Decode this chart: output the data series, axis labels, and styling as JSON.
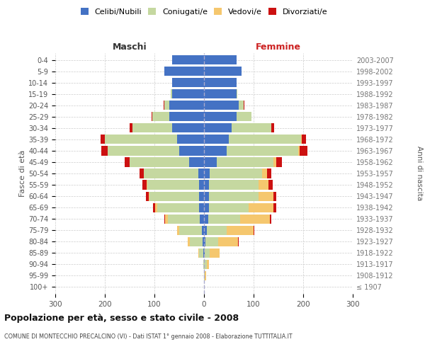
{
  "age_groups": [
    "100+",
    "95-99",
    "90-94",
    "85-89",
    "80-84",
    "75-79",
    "70-74",
    "65-69",
    "60-64",
    "55-59",
    "50-54",
    "45-49",
    "40-44",
    "35-39",
    "30-34",
    "25-29",
    "20-24",
    "15-19",
    "10-14",
    "5-9",
    "0-4"
  ],
  "birth_years": [
    "≤ 1907",
    "1908-1912",
    "1913-1917",
    "1918-1922",
    "1923-1927",
    "1928-1932",
    "1933-1937",
    "1938-1942",
    "1943-1947",
    "1948-1952",
    "1953-1957",
    "1958-1962",
    "1963-1967",
    "1968-1972",
    "1973-1977",
    "1978-1982",
    "1983-1987",
    "1988-1992",
    "1993-1997",
    "1998-2002",
    "2003-2007"
  ],
  "male": {
    "celibe": [
      0,
      0,
      0,
      2,
      3,
      5,
      8,
      10,
      10,
      10,
      12,
      30,
      50,
      55,
      65,
      70,
      70,
      65,
      65,
      80,
      65
    ],
    "coniugato": [
      0,
      0,
      2,
      8,
      25,
      45,
      65,
      85,
      100,
      105,
      110,
      120,
      145,
      145,
      80,
      35,
      10,
      2,
      0,
      0,
      0
    ],
    "vedovo": [
      0,
      0,
      0,
      2,
      5,
      5,
      5,
      3,
      2,
      1,
      0,
      0,
      0,
      0,
      0,
      0,
      0,
      0,
      0,
      0,
      0
    ],
    "divorziato": [
      0,
      0,
      0,
      0,
      0,
      0,
      2,
      5,
      5,
      8,
      8,
      10,
      12,
      8,
      5,
      1,
      1,
      0,
      0,
      0,
      0
    ]
  },
  "female": {
    "nubile": [
      0,
      0,
      0,
      2,
      3,
      5,
      8,
      10,
      10,
      10,
      12,
      25,
      45,
      50,
      55,
      65,
      70,
      65,
      65,
      75,
      65
    ],
    "coniugata": [
      0,
      2,
      5,
      10,
      25,
      40,
      65,
      80,
      100,
      100,
      105,
      115,
      145,
      145,
      80,
      30,
      10,
      2,
      0,
      0,
      0
    ],
    "vedova": [
      0,
      2,
      5,
      20,
      40,
      55,
      60,
      50,
      30,
      20,
      10,
      5,
      3,
      2,
      1,
      0,
      0,
      0,
      0,
      0,
      0
    ],
    "divorziata": [
      0,
      0,
      0,
      0,
      2,
      2,
      3,
      5,
      5,
      8,
      8,
      12,
      15,
      8,
      5,
      1,
      1,
      0,
      0,
      0,
      0
    ]
  },
  "colors": {
    "celibe": "#4472c4",
    "coniugato": "#c5d8a0",
    "vedovo": "#f5c76e",
    "divorziato": "#cc1111"
  },
  "xlim": 300,
  "title": "Popolazione per età, sesso e stato civile - 2008",
  "subtitle": "COMUNE DI MONTECCHIO PRECALCINO (VI) - Dati ISTAT 1° gennaio 2008 - Elaborazione TUTTITALIA.IT",
  "xlabel_left": "Maschi",
  "xlabel_right": "Femmine",
  "ylabel_left": "Fasce di età",
  "ylabel_right": "Anni di nascita",
  "legend_labels": [
    "Celibi/Nubili",
    "Coniugati/e",
    "Vedovi/e",
    "Divorziati/e"
  ]
}
